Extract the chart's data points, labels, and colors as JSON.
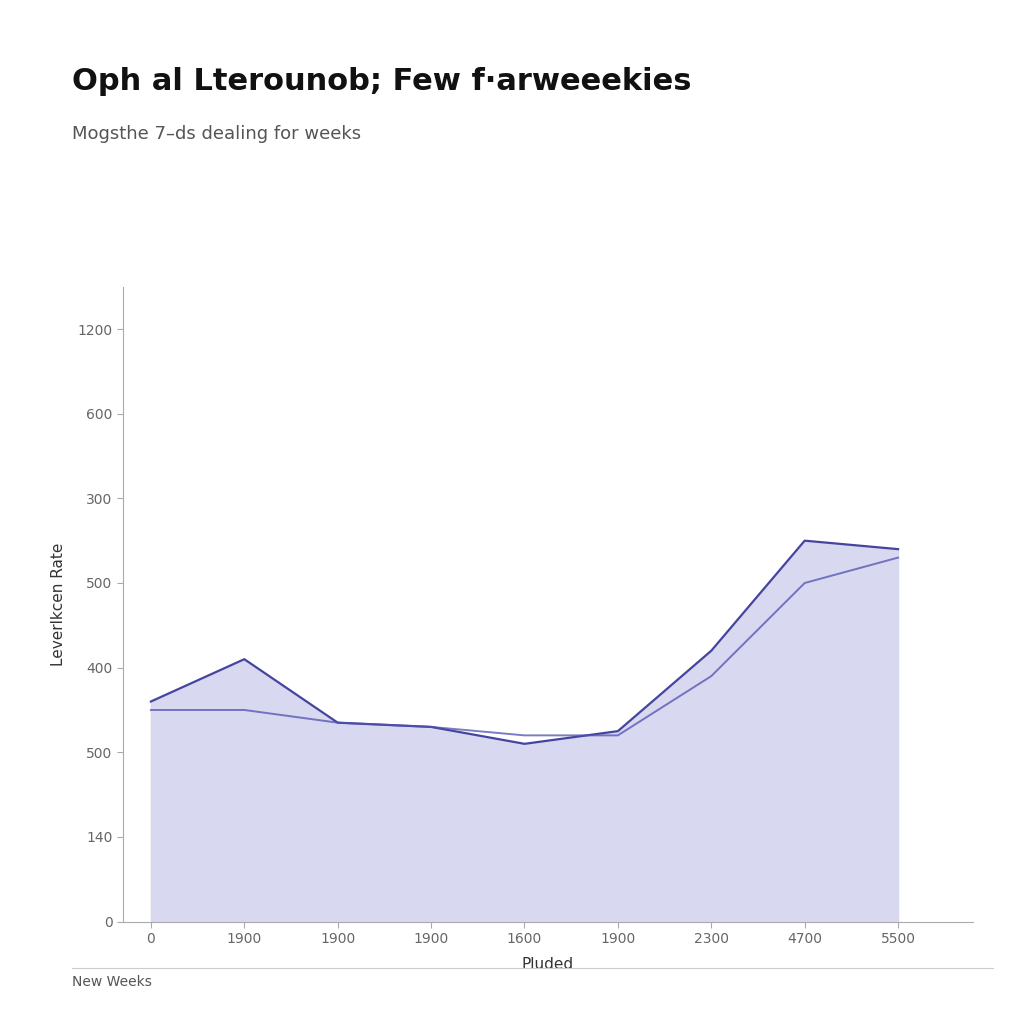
{
  "title": "Oph al Lterounob; Few f·arweeekies",
  "subtitle": "Mogsthe 7–ds dealing for weeks",
  "xlabel": "Pluded",
  "ylabel": "Leverlkcen Rate",
  "footer": "New Weeks",
  "ytick_labels": [
    "1200",
    "600",
    "300",
    "500",
    "400",
    "500",
    "140",
    "0"
  ],
  "ytick_positions": [
    7,
    6,
    5,
    4,
    3,
    2,
    1,
    0
  ],
  "xtick_labels": [
    "0",
    "1900",
    "1900",
    "1900",
    "1600",
    "1900",
    "2300",
    "4700",
    "5500"
  ],
  "x_values": [
    0,
    1,
    2,
    3,
    4,
    5,
    6,
    7,
    8
  ],
  "line1_y": [
    2.6,
    3.1,
    2.35,
    2.3,
    2.1,
    2.25,
    3.2,
    4.5,
    4.4
  ],
  "line2_y": [
    2.5,
    2.5,
    2.35,
    2.3,
    2.2,
    2.2,
    2.9,
    4.0,
    4.3
  ],
  "fill_color": "#d8d8f0",
  "line1_color": "#4545a0",
  "line2_color": "#5050b0",
  "background_color": "#ffffff",
  "title_fontsize": 22,
  "subtitle_fontsize": 13,
  "axis_label_fontsize": 11,
  "tick_fontsize": 10,
  "ylim": [
    0,
    7.5
  ],
  "xlim": [
    -0.3,
    8.8
  ]
}
